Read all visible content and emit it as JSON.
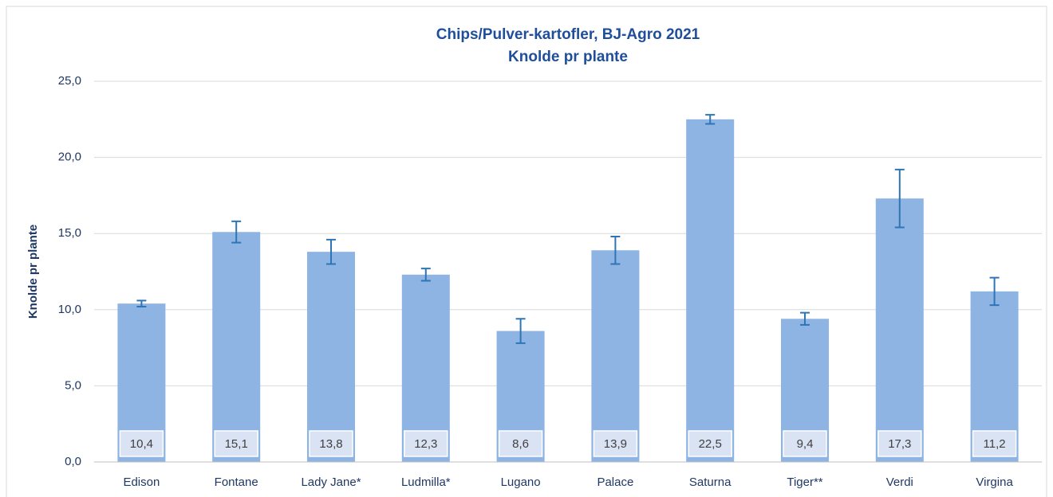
{
  "chart_data": {
    "type": "bar",
    "title": "Chips/Pulver-kartofler, BJ-Agro 2021",
    "subtitle": "Knolde pr plante",
    "y_label": "Knolde pr plante",
    "categories": [
      "Edison",
      "Fontane",
      "Lady Jane*",
      "Ludmilla*",
      "Lugano",
      "Palace",
      "Saturna",
      "Tiger**",
      "Verdi",
      "Virgina"
    ],
    "values": [
      10.4,
      15.1,
      13.8,
      12.3,
      8.6,
      13.9,
      22.5,
      9.4,
      17.3,
      11.2
    ],
    "value_labels": [
      "10,4",
      "15,1",
      "13,8",
      "12,3",
      "8,6",
      "13,9",
      "22,5",
      "9,4",
      "17,3",
      "11,2"
    ],
    "errors": [
      0.2,
      0.7,
      0.8,
      0.4,
      0.8,
      0.9,
      0.3,
      0.4,
      1.9,
      0.9
    ],
    "color": "#8eb4e3",
    "error_color": "#2e75b6",
    "ylim": [
      0,
      25
    ],
    "yticks": [
      {
        "value": 0,
        "label": "0,0"
      },
      {
        "value": 5,
        "label": "5,0"
      },
      {
        "value": 10,
        "label": "10,0"
      },
      {
        "value": 15,
        "label": "15,0"
      },
      {
        "value": 20,
        "label": "20,0"
      },
      {
        "value": 25,
        "label": "25,0"
      }
    ],
    "grid": true
  }
}
